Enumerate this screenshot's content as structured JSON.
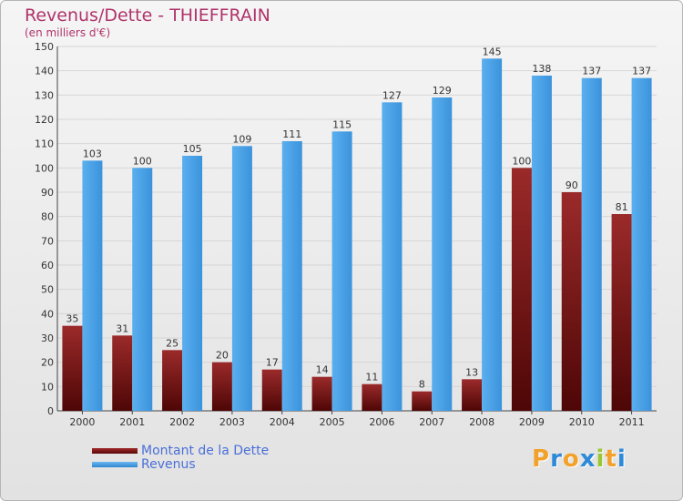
{
  "title": "Revenus/Dette - THIEFFRAIN",
  "subtitle": "(en milliers d'€)",
  "legend": {
    "debt_label": "Montant de la Dette",
    "revenue_label": "Revenus"
  },
  "logo": {
    "letters": [
      "P",
      "r",
      "o",
      "x",
      "i",
      "t",
      "i"
    ],
    "colors": [
      "#f2a12a",
      "#2e8ad8",
      "#f2a12a",
      "#2e8ad8",
      "#9ac833",
      "#f2a12a",
      "#2e8ad8"
    ]
  },
  "chart_data": {
    "type": "bar",
    "categories": [
      "2000",
      "2001",
      "2002",
      "2003",
      "2004",
      "2005",
      "2006",
      "2007",
      "2008",
      "2009",
      "2010",
      "2011"
    ],
    "series": [
      {
        "name": "Montant de la Dette",
        "color": "#7a1a1a",
        "values": [
          35,
          31,
          25,
          20,
          17,
          14,
          11,
          8,
          13,
          100,
          90,
          81
        ]
      },
      {
        "name": "Revenus",
        "color": "#4aa0e2",
        "values": [
          103,
          100,
          105,
          109,
          111,
          115,
          127,
          129,
          145,
          138,
          137,
          137
        ]
      }
    ],
    "ylim": [
      0,
      150
    ],
    "yticks": [
      0,
      10,
      20,
      30,
      40,
      50,
      60,
      70,
      80,
      90,
      100,
      110,
      120,
      130,
      140,
      150
    ],
    "grid": true,
    "legend_position": "bottom-left"
  }
}
